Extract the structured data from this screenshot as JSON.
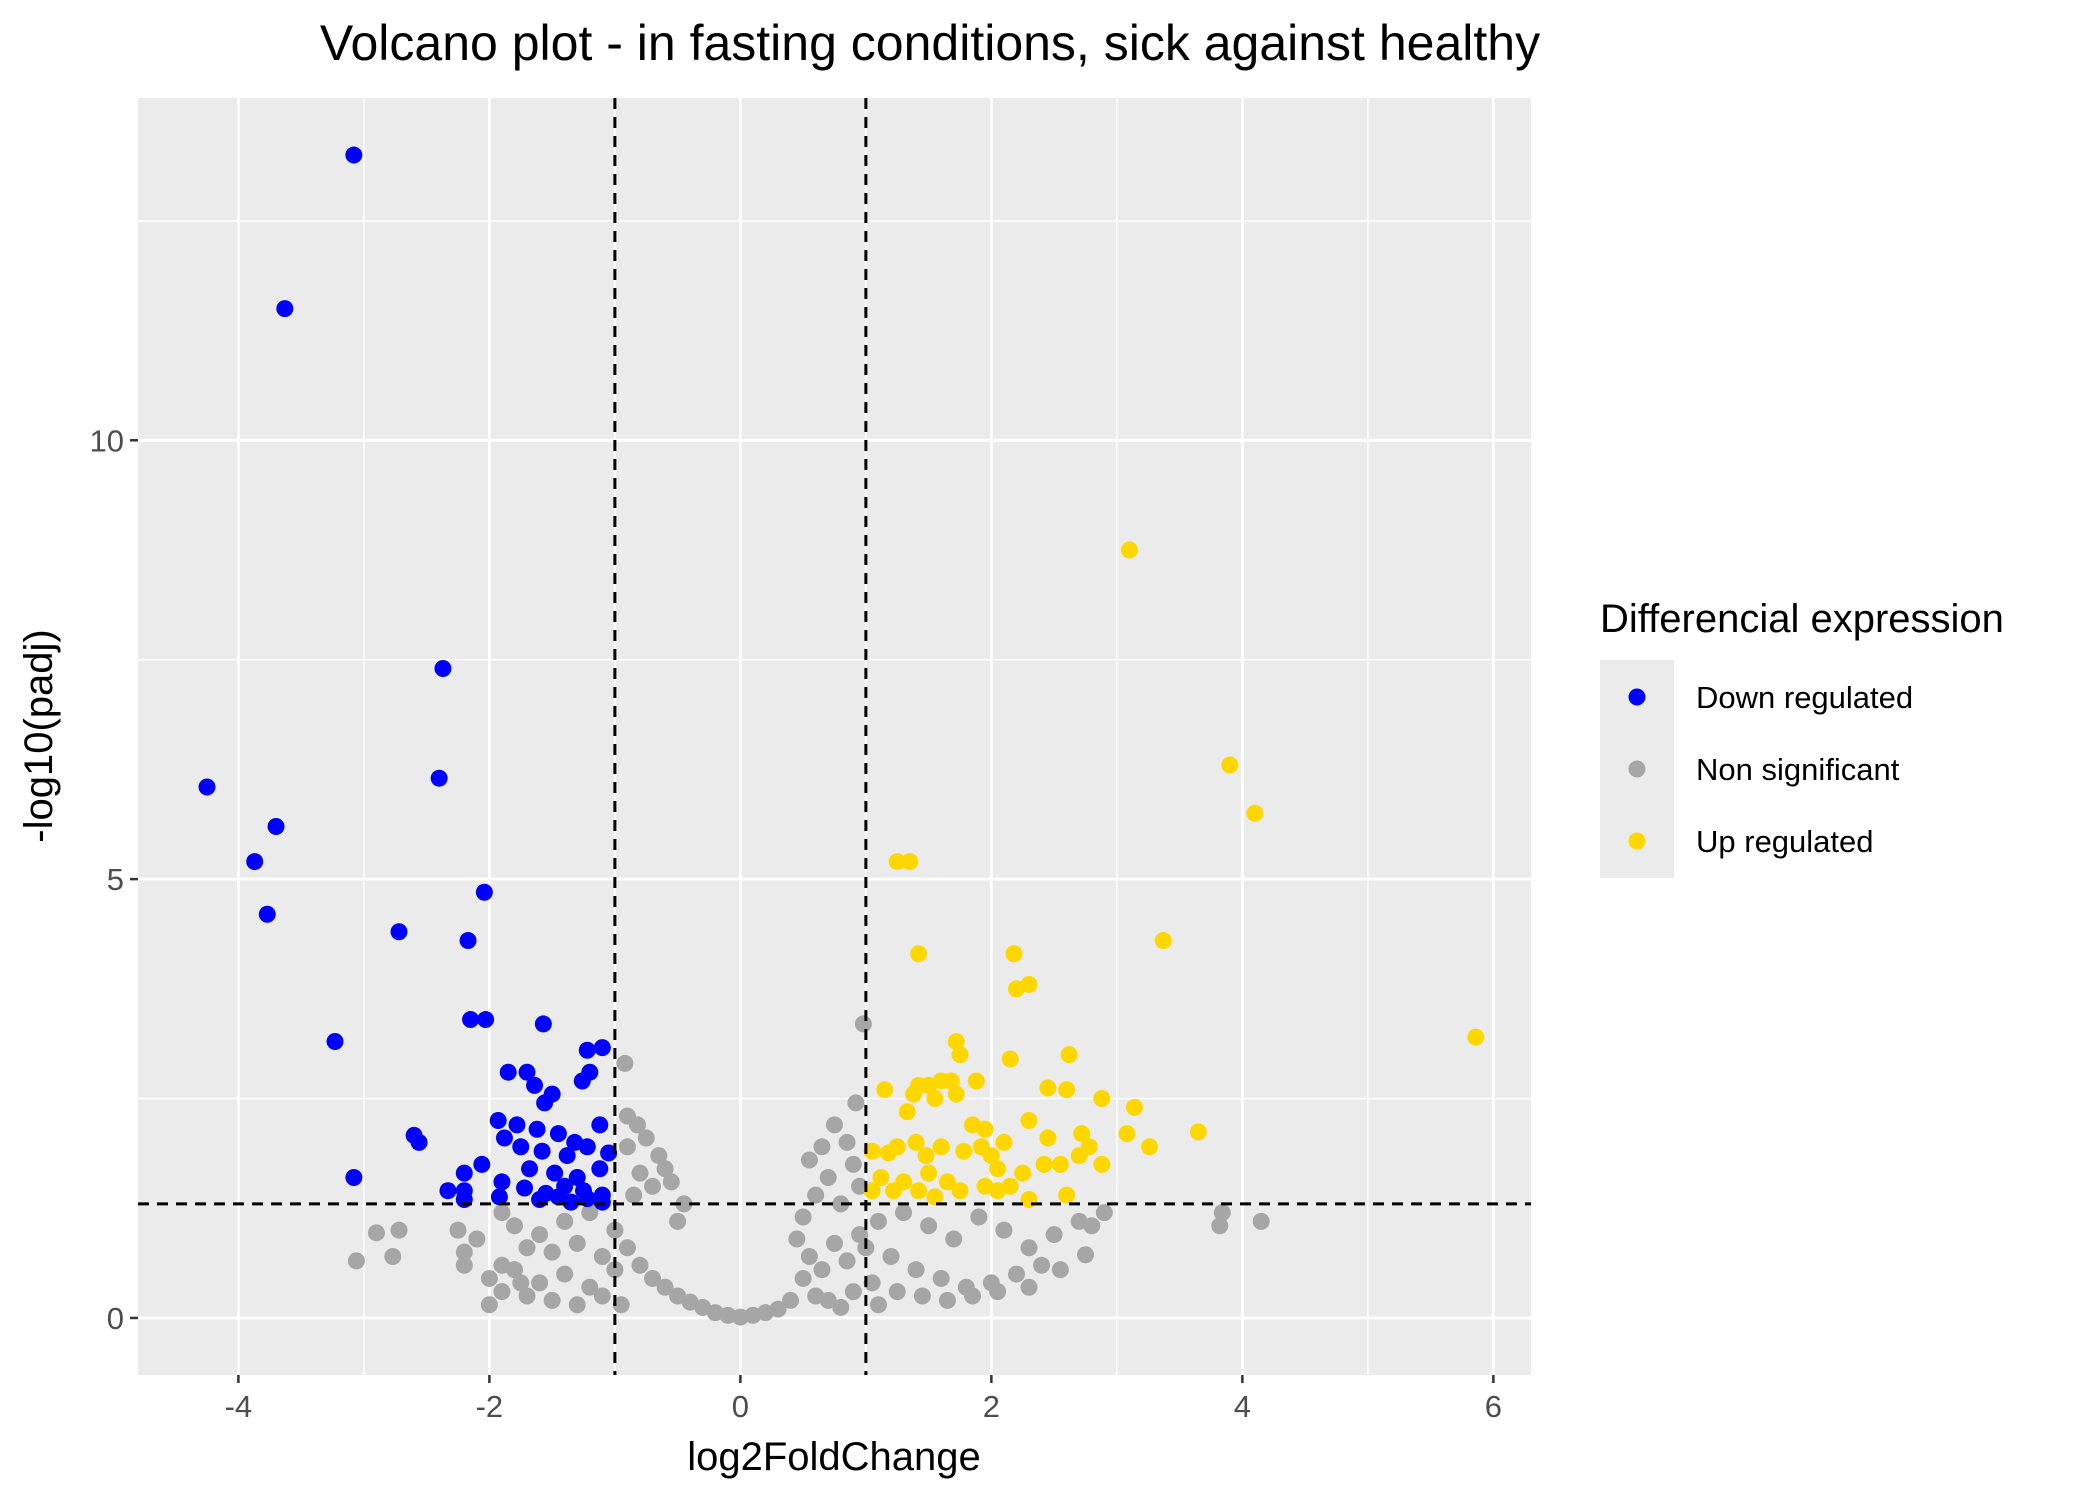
{
  "chart_data": {
    "type": "scatter",
    "title": "Volcano plot - in fasting conditions, sick against healthy",
    "xlabel": "log2FoldChange",
    "ylabel": "-log10(padj)",
    "xlim": [
      -4.8,
      6.3
    ],
    "ylim": [
      -0.65,
      13.9
    ],
    "x_ticks": [
      -4,
      -2,
      0,
      2,
      4,
      6
    ],
    "y_ticks": [
      0,
      5,
      10
    ],
    "x_tick_labels": [
      "-4",
      "-2",
      "0",
      "2",
      "4",
      "6"
    ],
    "y_tick_labels": [
      "0",
      "5",
      "10"
    ],
    "grid": true,
    "thresholds": {
      "log2FoldChange": [
        -1,
        1
      ],
      "neg_log10_padj": 1.3
    },
    "legend": {
      "title": "Differencial expression",
      "position": "right",
      "entries": [
        {
          "label": "Down regulated",
          "color": "#0000ff"
        },
        {
          "label": "Non significant",
          "color": "#a6a6a6"
        },
        {
          "label": "Up regulated",
          "color": "#ffd700"
        }
      ]
    },
    "series": [
      {
        "name": "Down regulated",
        "color": "#0000ff",
        "points": [
          [
            -3.08,
            13.25
          ],
          [
            -3.63,
            11.5
          ],
          [
            -2.37,
            7.4
          ],
          [
            -4.25,
            6.05
          ],
          [
            -2.4,
            6.15
          ],
          [
            -3.7,
            5.6
          ],
          [
            -3.87,
            5.2
          ],
          [
            -2.04,
            4.85
          ],
          [
            -3.77,
            4.6
          ],
          [
            -2.72,
            4.4
          ],
          [
            -2.17,
            4.3
          ],
          [
            -2.15,
            3.4
          ],
          [
            -2.03,
            3.4
          ],
          [
            -1.57,
            3.35
          ],
          [
            -3.23,
            3.15
          ],
          [
            -1.22,
            3.05
          ],
          [
            -1.1,
            3.08
          ],
          [
            -1.85,
            2.8
          ],
          [
            -1.7,
            2.8
          ],
          [
            -1.64,
            2.65
          ],
          [
            -1.2,
            2.8
          ],
          [
            -1.26,
            2.7
          ],
          [
            -1.5,
            2.55
          ],
          [
            -1.56,
            2.45
          ],
          [
            -1.12,
            2.2
          ],
          [
            -1.93,
            2.25
          ],
          [
            -1.78,
            2.2
          ],
          [
            -1.62,
            2.15
          ],
          [
            -1.45,
            2.1
          ],
          [
            -1.32,
            2.0
          ],
          [
            -2.6,
            2.08
          ],
          [
            -2.56,
            2.0
          ],
          [
            -1.88,
            2.05
          ],
          [
            -1.75,
            1.95
          ],
          [
            -1.58,
            1.9
          ],
          [
            -1.38,
            1.85
          ],
          [
            -1.22,
            1.95
          ],
          [
            -1.05,
            1.88
          ],
          [
            -2.06,
            1.75
          ],
          [
            -2.2,
            1.65
          ],
          [
            -1.68,
            1.7
          ],
          [
            -1.48,
            1.65
          ],
          [
            -1.3,
            1.6
          ],
          [
            -1.12,
            1.7
          ],
          [
            -3.08,
            1.6
          ],
          [
            -2.33,
            1.45
          ],
          [
            -2.2,
            1.45
          ],
          [
            -1.9,
            1.55
          ],
          [
            -1.72,
            1.48
          ],
          [
            -1.55,
            1.42
          ],
          [
            -1.4,
            1.5
          ],
          [
            -1.25,
            1.45
          ],
          [
            -1.1,
            1.4
          ],
          [
            -1.92,
            1.38
          ],
          [
            -1.6,
            1.35
          ],
          [
            -1.45,
            1.38
          ],
          [
            -1.35,
            1.32
          ],
          [
            -1.22,
            1.36
          ],
          [
            -1.1,
            1.32
          ],
          [
            -2.2,
            1.35
          ]
        ]
      },
      {
        "name": "Up regulated",
        "color": "#ffd700",
        "points": [
          [
            3.1,
            8.75
          ],
          [
            3.9,
            6.3
          ],
          [
            4.1,
            5.75
          ],
          [
            1.25,
            5.2
          ],
          [
            1.35,
            5.2
          ],
          [
            2.18,
            4.15
          ],
          [
            1.42,
            4.15
          ],
          [
            3.37,
            4.3
          ],
          [
            2.2,
            3.75
          ],
          [
            2.3,
            3.8
          ],
          [
            5.86,
            3.2
          ],
          [
            1.72,
            3.15
          ],
          [
            1.75,
            3.0
          ],
          [
            2.15,
            2.95
          ],
          [
            2.62,
            3.0
          ],
          [
            1.42,
            2.65
          ],
          [
            1.5,
            2.65
          ],
          [
            1.6,
            2.7
          ],
          [
            1.68,
            2.7
          ],
          [
            1.88,
            2.7
          ],
          [
            2.45,
            2.62
          ],
          [
            2.6,
            2.6
          ],
          [
            1.15,
            2.6
          ],
          [
            1.38,
            2.55
          ],
          [
            1.55,
            2.5
          ],
          [
            1.72,
            2.55
          ],
          [
            2.88,
            2.5
          ],
          [
            3.14,
            2.4
          ],
          [
            1.33,
            2.35
          ],
          [
            2.3,
            2.25
          ],
          [
            1.85,
            2.2
          ],
          [
            1.95,
            2.15
          ],
          [
            3.08,
            2.1
          ],
          [
            3.65,
            2.12
          ],
          [
            2.45,
            2.05
          ],
          [
            2.72,
            2.1
          ],
          [
            2.1,
            2.0
          ],
          [
            1.25,
            1.95
          ],
          [
            1.4,
            2.0
          ],
          [
            1.6,
            1.95
          ],
          [
            1.78,
            1.9
          ],
          [
            1.92,
            1.95
          ],
          [
            2.0,
            1.85
          ],
          [
            2.78,
            1.95
          ],
          [
            3.26,
            1.95
          ],
          [
            1.05,
            1.9
          ],
          [
            1.18,
            1.88
          ],
          [
            1.48,
            1.85
          ],
          [
            2.7,
            1.85
          ],
          [
            2.42,
            1.75
          ],
          [
            2.55,
            1.75
          ],
          [
            2.88,
            1.75
          ],
          [
            1.5,
            1.65
          ],
          [
            2.05,
            1.7
          ],
          [
            2.25,
            1.65
          ],
          [
            1.12,
            1.6
          ],
          [
            1.3,
            1.55
          ],
          [
            1.65,
            1.55
          ],
          [
            1.95,
            1.5
          ],
          [
            2.15,
            1.5
          ],
          [
            1.05,
            1.45
          ],
          [
            1.22,
            1.45
          ],
          [
            1.42,
            1.45
          ],
          [
            1.75,
            1.45
          ],
          [
            2.05,
            1.45
          ],
          [
            1.55,
            1.38
          ],
          [
            2.3,
            1.35
          ],
          [
            2.6,
            1.4
          ]
        ]
      },
      {
        "name": "Non significant",
        "color": "#a6a6a6",
        "points": [
          [
            -2.9,
            0.97
          ],
          [
            -2.72,
            1.0
          ],
          [
            -3.06,
            0.65
          ],
          [
            -2.77,
            0.7
          ],
          [
            -2.2,
            0.6
          ],
          [
            -2.2,
            0.75
          ],
          [
            -2.25,
            1.0
          ],
          [
            -0.92,
            2.9
          ],
          [
            -0.9,
            2.3
          ],
          [
            -0.82,
            2.2
          ],
          [
            -0.75,
            2.05
          ],
          [
            -0.65,
            1.85
          ],
          [
            -0.9,
            1.95
          ],
          [
            -0.6,
            1.7
          ],
          [
            -0.55,
            1.55
          ],
          [
            -0.45,
            1.3
          ],
          [
            -0.7,
            1.5
          ],
          [
            -0.8,
            1.65
          ],
          [
            -0.85,
            1.4
          ],
          [
            -0.5,
            1.1
          ],
          [
            -1.9,
            1.2
          ],
          [
            -1.8,
            1.05
          ],
          [
            -1.6,
            0.95
          ],
          [
            -1.4,
            1.1
          ],
          [
            -1.2,
            1.2
          ],
          [
            -1.0,
            1.0
          ],
          [
            -1.7,
            0.8
          ],
          [
            -1.5,
            0.75
          ],
          [
            -1.3,
            0.85
          ],
          [
            -1.1,
            0.7
          ],
          [
            -1.9,
            0.6
          ],
          [
            -2.1,
            0.9
          ],
          [
            -2.0,
            0.45
          ],
          [
            -1.8,
            0.55
          ],
          [
            -1.6,
            0.4
          ],
          [
            -1.4,
            0.5
          ],
          [
            -1.2,
            0.35
          ],
          [
            -1.0,
            0.55
          ],
          [
            -0.9,
            0.8
          ],
          [
            -0.8,
            0.6
          ],
          [
            -0.7,
            0.45
          ],
          [
            -0.6,
            0.35
          ],
          [
            -0.5,
            0.25
          ],
          [
            -0.4,
            0.18
          ],
          [
            -0.3,
            0.12
          ],
          [
            -0.2,
            0.06
          ],
          [
            -0.1,
            0.03
          ],
          [
            0.0,
            0.01
          ],
          [
            0.1,
            0.03
          ],
          [
            0.2,
            0.06
          ],
          [
            0.3,
            0.1
          ],
          [
            0.4,
            0.2
          ],
          [
            -1.9,
            0.3
          ],
          [
            -1.7,
            0.25
          ],
          [
            -1.5,
            0.2
          ],
          [
            -1.3,
            0.15
          ],
          [
            -1.1,
            0.25
          ],
          [
            -0.95,
            0.15
          ],
          [
            -2.0,
            0.15
          ],
          [
            -1.75,
            0.4
          ],
          [
            0.98,
            3.35
          ],
          [
            0.92,
            2.45
          ],
          [
            0.75,
            2.2
          ],
          [
            0.85,
            2.0
          ],
          [
            0.65,
            1.95
          ],
          [
            0.55,
            1.8
          ],
          [
            0.9,
            1.75
          ],
          [
            0.7,
            1.6
          ],
          [
            0.6,
            1.4
          ],
          [
            0.5,
            1.15
          ],
          [
            0.45,
            0.9
          ],
          [
            0.8,
            1.3
          ],
          [
            0.95,
            1.5
          ],
          [
            0.55,
            0.7
          ],
          [
            0.65,
            0.55
          ],
          [
            0.75,
            0.85
          ],
          [
            0.85,
            0.65
          ],
          [
            0.95,
            0.95
          ],
          [
            1.1,
            1.1
          ],
          [
            1.3,
            1.2
          ],
          [
            1.5,
            1.05
          ],
          [
            1.7,
            0.9
          ],
          [
            1.9,
            1.15
          ],
          [
            2.1,
            1.0
          ],
          [
            2.3,
            0.8
          ],
          [
            2.5,
            0.95
          ],
          [
            2.7,
            1.1
          ],
          [
            2.9,
            1.2
          ],
          [
            2.8,
            1.05
          ],
          [
            2.75,
            0.72
          ],
          [
            2.4,
            0.6
          ],
          [
            2.2,
            0.5
          ],
          [
            2.0,
            0.4
          ],
          [
            1.8,
            0.35
          ],
          [
            1.6,
            0.45
          ],
          [
            1.4,
            0.55
          ],
          [
            1.2,
            0.7
          ],
          [
            1.05,
            0.4
          ],
          [
            1.25,
            0.3
          ],
          [
            1.45,
            0.25
          ],
          [
            1.65,
            0.2
          ],
          [
            1.85,
            0.25
          ],
          [
            2.05,
            0.3
          ],
          [
            1.1,
            0.15
          ],
          [
            0.6,
            0.25
          ],
          [
            0.7,
            0.2
          ],
          [
            0.8,
            0.12
          ],
          [
            0.9,
            0.3
          ],
          [
            3.84,
            1.2
          ],
          [
            3.82,
            1.05
          ],
          [
            4.15,
            1.1
          ],
          [
            2.55,
            0.55
          ],
          [
            2.3,
            0.35
          ],
          [
            0.5,
            0.45
          ],
          [
            1.0,
            0.8
          ]
        ]
      }
    ]
  }
}
